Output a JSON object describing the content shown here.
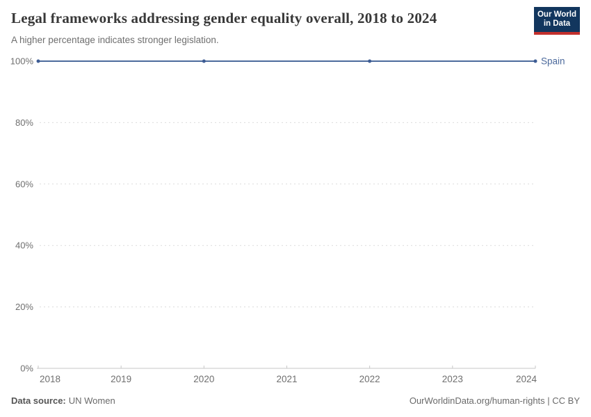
{
  "header": {
    "title": "Legal frameworks addressing gender equality overall, 2018 to 2024",
    "subtitle": "A higher percentage indicates stronger legislation.",
    "logo": {
      "line1": "Our World",
      "line2": "in Data"
    }
  },
  "chart_data": {
    "type": "line",
    "x": [
      2018,
      2019,
      2020,
      2021,
      2022,
      2023,
      2024
    ],
    "series": [
      {
        "name": "Spain",
        "values": [
          100,
          100,
          100,
          100,
          100,
          100,
          100
        ],
        "color": "#4c6a9c",
        "marker_color": "#3d5c94",
        "marked_x": [
          2018,
          2020,
          2022,
          2024
        ]
      }
    ],
    "title": "Legal frameworks addressing gender equality overall, 2018 to 2024",
    "xlabel": "",
    "ylabel": "",
    "ylim": [
      0,
      100
    ],
    "yticks": [
      0,
      20,
      40,
      60,
      80,
      100
    ],
    "ytick_suffix": "%",
    "grid": "dashed-horizontal",
    "legend_position": "end-of-line"
  },
  "footer": {
    "source_label": "Data source:",
    "source_value": "UN Women",
    "credit": "OurWorldinData.org/human-rights | CC BY"
  },
  "colors": {
    "grid": "#dcdcdc",
    "axis": "#c7c7c7",
    "tick_label": "#6f6f6f",
    "logo_bg": "#12365e",
    "logo_stripe": "#c2302d"
  }
}
